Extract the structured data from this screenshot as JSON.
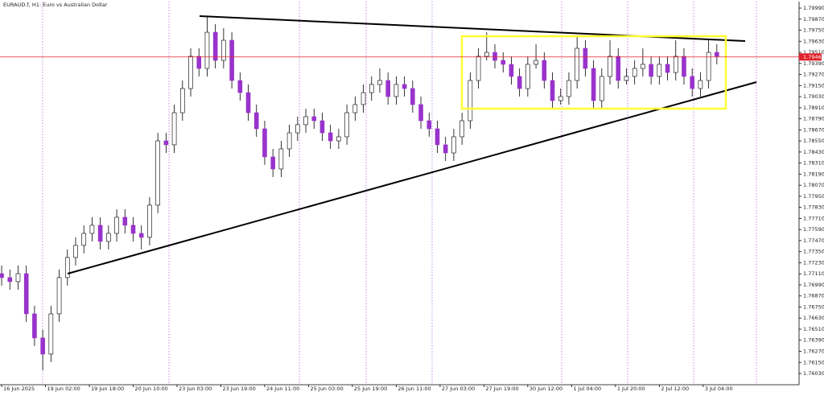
{
  "chart_data": {
    "type": "candlestick",
    "title": "EURAUD.f, H1:  Euro vs Australian Dollar",
    "bull_color": "#ffffff",
    "bear_color": "#9933cc",
    "x": [
      0,
      3,
      6,
      9,
      12,
      15,
      18,
      21,
      24,
      27,
      30,
      33,
      36,
      39,
      42,
      45,
      48,
      51,
      54,
      57,
      60,
      63,
      66,
      69,
      72,
      75,
      78,
      81,
      84,
      87,
      90,
      93,
      96,
      99,
      102,
      105,
      108,
      111,
      114,
      117,
      120,
      123,
      126,
      129,
      132,
      135,
      138,
      141,
      144,
      147,
      150,
      153,
      156,
      159,
      162,
      165,
      168,
      171,
      174,
      177,
      180,
      183,
      186,
      189,
      192,
      195,
      198,
      201,
      204,
      207,
      210,
      213,
      216,
      219,
      222,
      225,
      228,
      231,
      234,
      237,
      240,
      243,
      246,
      249,
      252,
      255,
      258,
      261
    ],
    "open": [
      1.77112,
      1.77069,
      1.77025,
      1.77112,
      1.76676,
      1.76415,
      1.7624,
      1.76676,
      1.77069,
      1.77287,
      1.77418,
      1.77548,
      1.77636,
      1.77461,
      1.77548,
      1.77723,
      1.77636,
      1.77548,
      1.77505,
      1.77854,
      1.78551,
      1.78508,
      1.78856,
      1.79118,
      1.79467,
      1.79336,
      1.79728,
      1.79423,
      1.79641,
      1.79205,
      1.79074,
      1.78856,
      1.78682,
      1.78377,
      1.78246,
      1.78464,
      1.78638,
      1.78726,
      1.78813,
      1.78769,
      1.78638,
      1.78551,
      1.78595,
      1.78856,
      1.78944,
      1.79074,
      1.79162,
      1.79205,
      1.79031,
      1.79162,
      1.79118,
      1.78944,
      1.78769,
      1.78682,
      1.78508,
      1.7842,
      1.78595,
      1.78769,
      1.79205,
      1.79467,
      1.7951,
      1.79423,
      1.7938,
      1.79249,
      1.79118,
      1.7938,
      1.79423,
      1.79205,
      1.78987,
      1.79031,
      1.79205,
      1.79554,
      1.79336,
      1.78987,
      1.79249,
      1.79467,
      1.79205,
      1.79249,
      1.79336,
      1.7938,
      1.79249,
      1.7938,
      1.79292,
      1.79467,
      1.79249,
      1.79118,
      1.79205,
      1.7951
    ],
    "high": [
      1.772,
      1.77156,
      1.772,
      1.772,
      1.76764,
      1.76502,
      1.76764,
      1.77156,
      1.77374,
      1.77505,
      1.77636,
      1.77723,
      1.77723,
      1.77636,
      1.7781,
      1.7781,
      1.77723,
      1.77636,
      1.77941,
      1.78638,
      1.78638,
      1.78944,
      1.79205,
      1.79554,
      1.79554,
      1.79903,
      1.79816,
      1.79772,
      1.79728,
      1.79292,
      1.79162,
      1.78944,
      1.78769,
      1.78464,
      1.78551,
      1.78726,
      1.78813,
      1.789,
      1.789,
      1.78856,
      1.78726,
      1.78682,
      1.78944,
      1.79031,
      1.79162,
      1.79249,
      1.79336,
      1.79292,
      1.79249,
      1.79249,
      1.79205,
      1.79031,
      1.78856,
      1.78769,
      1.78595,
      1.78682,
      1.78856,
      1.79292,
      1.79554,
      1.79728,
      1.79598,
      1.7951,
      1.79467,
      1.79336,
      1.79467,
      1.79598,
      1.7951,
      1.79292,
      1.79118,
      1.79292,
      1.79685,
      1.79641,
      1.79423,
      1.79336,
      1.79641,
      1.79554,
      1.79336,
      1.79423,
      1.79554,
      1.79467,
      1.79467,
      1.79467,
      1.79641,
      1.79554,
      1.79336,
      1.79292,
      1.79641,
      1.79598
    ],
    "low": [
      1.76982,
      1.76938,
      1.76938,
      1.76589,
      1.76328,
      1.76066,
      1.76153,
      1.76589,
      1.76982,
      1.772,
      1.77331,
      1.77461,
      1.77374,
      1.77374,
      1.77461,
      1.77548,
      1.77461,
      1.77374,
      1.77418,
      1.77767,
      1.7842,
      1.7842,
      1.78769,
      1.79031,
      1.79249,
      1.79249,
      1.79336,
      1.79336,
      1.79118,
      1.78987,
      1.78769,
      1.78595,
      1.7829,
      1.78159,
      1.78159,
      1.78377,
      1.78551,
      1.78638,
      1.78682,
      1.78551,
      1.78464,
      1.78464,
      1.78508,
      1.78769,
      1.78856,
      1.78987,
      1.79074,
      1.78944,
      1.78944,
      1.79031,
      1.78856,
      1.78682,
      1.78595,
      1.7842,
      1.78333,
      1.78333,
      1.78508,
      1.78682,
      1.79118,
      1.79423,
      1.79336,
      1.79292,
      1.79162,
      1.79031,
      1.79031,
      1.79336,
      1.79118,
      1.789,
      1.78944,
      1.78944,
      1.79118,
      1.79249,
      1.789,
      1.789,
      1.79162,
      1.79118,
      1.79162,
      1.79162,
      1.79249,
      1.79162,
      1.79162,
      1.79205,
      1.79205,
      1.79162,
      1.79031,
      1.79031,
      1.79118,
      1.7938
    ],
    "close": [
      1.77069,
      1.77025,
      1.77112,
      1.76676,
      1.76415,
      1.7624,
      1.76676,
      1.77069,
      1.77287,
      1.77418,
      1.77548,
      1.77636,
      1.77461,
      1.77548,
      1.77723,
      1.77636,
      1.77548,
      1.77505,
      1.77854,
      1.78551,
      1.78508,
      1.78856,
      1.79118,
      1.79467,
      1.79336,
      1.79728,
      1.79423,
      1.79641,
      1.79205,
      1.79074,
      1.78856,
      1.78682,
      1.78377,
      1.78246,
      1.78464,
      1.78638,
      1.78726,
      1.78813,
      1.78769,
      1.78638,
      1.78551,
      1.78595,
      1.78856,
      1.78944,
      1.79074,
      1.79162,
      1.79205,
      1.79031,
      1.79162,
      1.79118,
      1.78944,
      1.78769,
      1.78682,
      1.78508,
      1.7842,
      1.78595,
      1.78769,
      1.79205,
      1.79467,
      1.7951,
      1.79423,
      1.7938,
      1.79249,
      1.79118,
      1.7938,
      1.79423,
      1.79205,
      1.78987,
      1.79031,
      1.79205,
      1.79554,
      1.79336,
      1.78987,
      1.79249,
      1.79467,
      1.79205,
      1.79249,
      1.79336,
      1.7938,
      1.79249,
      1.7938,
      1.79292,
      1.79467,
      1.79249,
      1.79118,
      1.79205,
      1.7951,
      1.79467
    ],
    "xlim": [
      -0.6,
      291
    ],
    "ylim": [
      1.75908,
      1.8006
    ],
    "xticks": [
      {
        "value": 0,
        "label": "16 Jun 2025"
      },
      {
        "value": 16,
        "label": "19 Jun 02:00"
      },
      {
        "value": 32,
        "label": "19 Jun 18:00"
      },
      {
        "value": 48,
        "label": "20 Jun 10:00"
      },
      {
        "value": 64,
        "label": "23 Jun 03:00"
      },
      {
        "value": 80,
        "label": "23 Jun 19:00"
      },
      {
        "value": 96,
        "label": "24 Jun 11:00"
      },
      {
        "value": 112,
        "label": "25 Jun 03:00"
      },
      {
        "value": 128,
        "label": "25 Jun 19:00"
      },
      {
        "value": 144,
        "label": "26 Jun 11:00"
      },
      {
        "value": 160,
        "label": "27 Jun 03:00"
      },
      {
        "value": 176,
        "label": "27 Jun 19:00"
      },
      {
        "value": 192,
        "label": "30 Jun 12:00"
      },
      {
        "value": 208,
        "label": "1 Jul 04:00"
      },
      {
        "value": 224,
        "label": "1 Jul 20:00"
      },
      {
        "value": 240,
        "label": "2 Jul 12:00"
      },
      {
        "value": 256,
        "label": "3 Jul 04:00"
      }
    ],
    "yticks": [
      {
        "value": 1.7999,
        "label": "1.79990"
      },
      {
        "value": 1.7987,
        "label": "1.79870"
      },
      {
        "value": 1.7975,
        "label": "1.79750"
      },
      {
        "value": 1.7963,
        "label": "1.79630"
      },
      {
        "value": 1.7951,
        "label": "1.79510"
      },
      {
        "value": 1.7939,
        "label": "1.79390"
      },
      {
        "value": 1.7927,
        "label": "1.79270"
      },
      {
        "value": 1.7915,
        "label": "1.79150"
      },
      {
        "value": 1.7903,
        "label": "1.79030"
      },
      {
        "value": 1.7891,
        "label": "1.78910"
      },
      {
        "value": 1.7879,
        "label": "1.78790"
      },
      {
        "value": 1.7867,
        "label": "1.78670"
      },
      {
        "value": 1.7855,
        "label": "1.78550"
      },
      {
        "value": 1.7843,
        "label": "1.78430"
      },
      {
        "value": 1.7831,
        "label": "1.78310"
      },
      {
        "value": 1.7819,
        "label": "1.78190"
      },
      {
        "value": 1.7807,
        "label": "1.78070"
      },
      {
        "value": 1.7795,
        "label": "1.77950"
      },
      {
        "value": 1.7783,
        "label": "1.77830"
      },
      {
        "value": 1.7771,
        "label": "1.77710"
      },
      {
        "value": 1.7759,
        "label": "1.77590"
      },
      {
        "value": 1.7747,
        "label": "1.77470"
      },
      {
        "value": 1.7735,
        "label": "1.77350"
      },
      {
        "value": 1.7723,
        "label": "1.77230"
      },
      {
        "value": 1.7711,
        "label": "1.77110"
      },
      {
        "value": 1.7699,
        "label": "1.76990"
      },
      {
        "value": 1.7687,
        "label": "1.76870"
      },
      {
        "value": 1.7675,
        "label": "1.76750"
      },
      {
        "value": 1.7663,
        "label": "1.76630"
      },
      {
        "value": 1.7651,
        "label": "1.76510"
      },
      {
        "value": 1.7639,
        "label": "1.76390"
      },
      {
        "value": 1.7627,
        "label": "1.76270"
      },
      {
        "value": 1.7615,
        "label": "1.76150"
      },
      {
        "value": 1.7603,
        "label": "1.76030"
      }
    ],
    "current_price": {
      "value": 1.7946,
      "label": "1.79460"
    },
    "current_price_color": "#e0202a"
  }
}
